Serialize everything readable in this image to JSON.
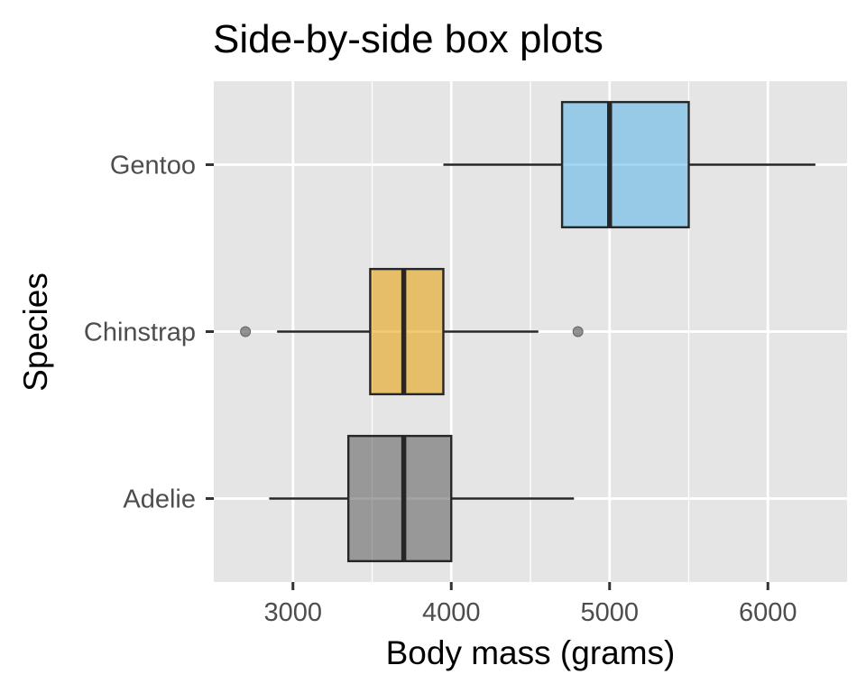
{
  "chart_data": {
    "type": "boxplot",
    "orientation": "horizontal",
    "title": "Side-by-side box plots",
    "xlabel": "Body mass (grams)",
    "ylabel": "Species",
    "xlim": [
      2500,
      6500
    ],
    "x_ticks": [
      3000,
      4000,
      5000,
      6000
    ],
    "grid": true,
    "legend": "none",
    "categories": [
      "Adelie",
      "Chinstrap",
      "Gentoo"
    ],
    "series": [
      {
        "category": "Adelie",
        "min": 2850,
        "q1": 3350,
        "median": 3700,
        "q3": 4000,
        "max": 4775,
        "outliers": [],
        "color": "#595959"
      },
      {
        "category": "Chinstrap",
        "min": 2900,
        "q1": 3488,
        "median": 3700,
        "q3": 3950,
        "max": 4550,
        "outliers": [
          2700,
          4800
        ],
        "color": "#E69F00"
      },
      {
        "category": "Gentoo",
        "min": 3950,
        "q1": 4700,
        "median": 5000,
        "q3": 5500,
        "max": 6300,
        "outliers": [],
        "color": "#56B4E9"
      }
    ],
    "colors": {
      "panel": "#e5e5e5",
      "grid": "#ffffff",
      "box_stroke": "#262626",
      "outlier": "#666666"
    }
  }
}
